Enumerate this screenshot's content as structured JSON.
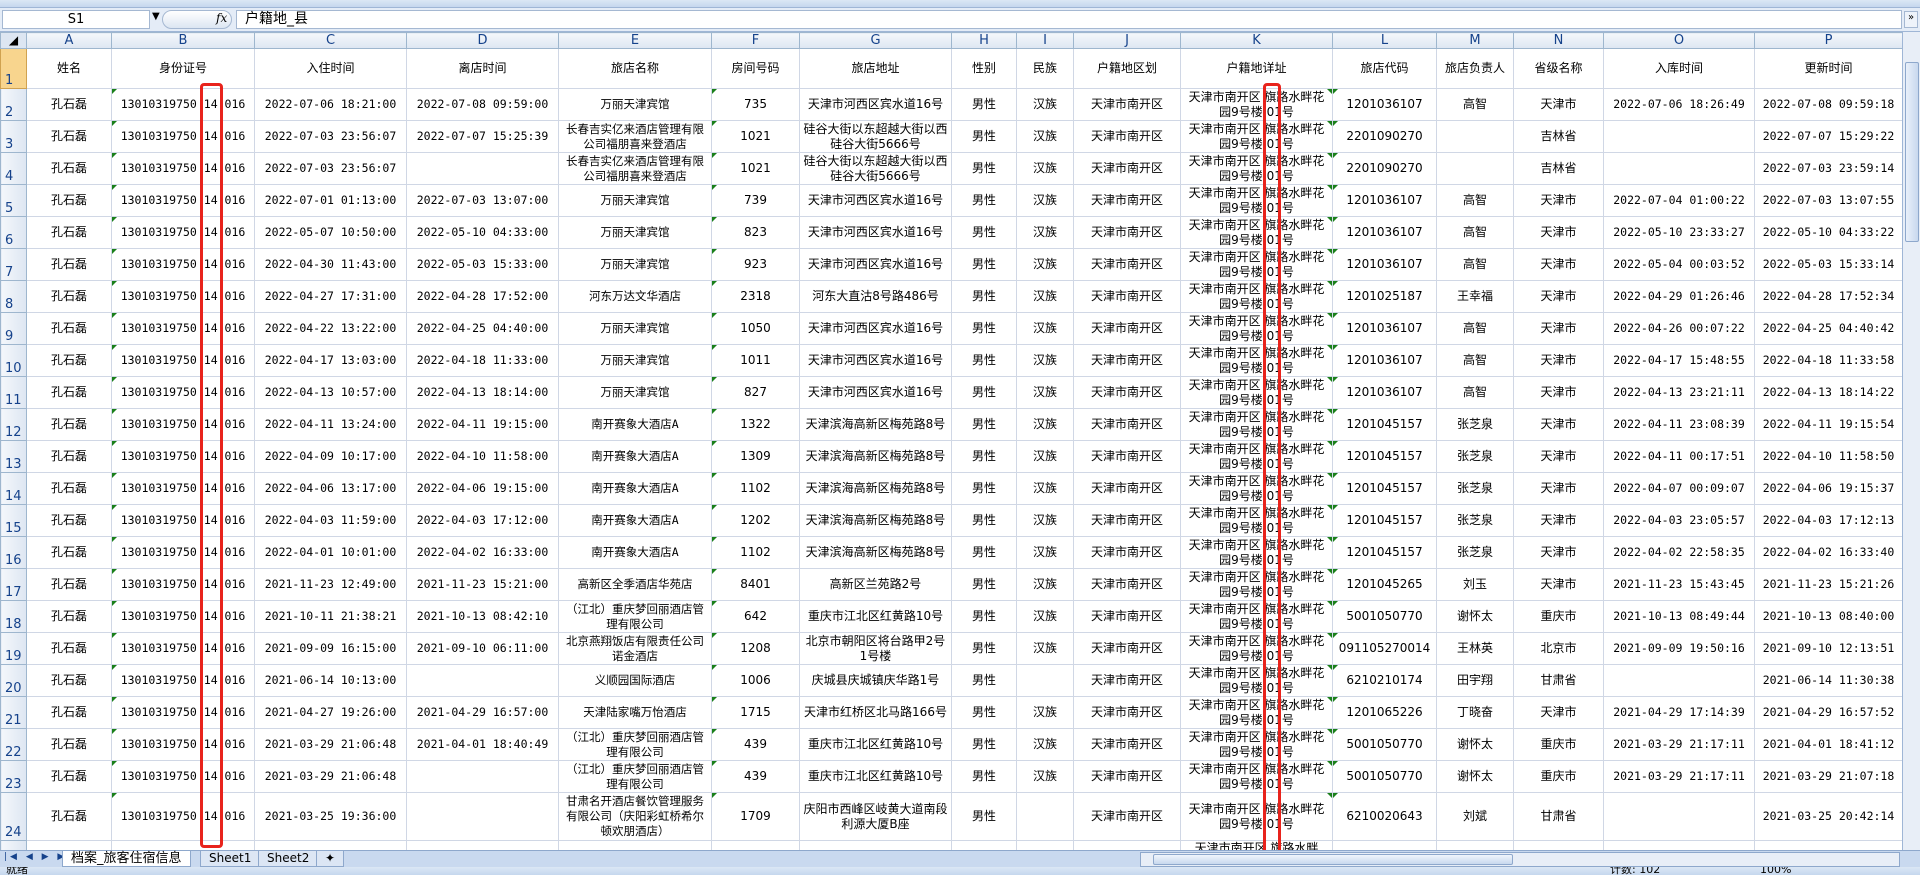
{
  "formula_bar": {
    "name_box": "S1",
    "fx": "fx",
    "content": "户籍地_县"
  },
  "columns": [
    "A",
    "B",
    "C",
    "D",
    "E",
    "F",
    "G",
    "H",
    "I",
    "J",
    "K",
    "L",
    "M",
    "N",
    "O",
    "P"
  ],
  "headers": [
    "姓名",
    "身份证号",
    "入住时间",
    "离店时间",
    "旅店名称",
    "房间号码",
    "旅店地址",
    "性别",
    "民族",
    "户籍地区划",
    "户籍地详址",
    "旅店代码",
    "旅店负责人",
    "省级名称",
    "入库时间",
    "更新时间"
  ],
  "rows": [
    [
      "孔石磊",
      "13010319750 14 016",
      "2022-07-06 18:21:00",
      "2022-07-08 09:59:00",
      "万丽天津宾馆",
      "735",
      "天津市河西区宾水道16号",
      "男性",
      "汉族",
      "天津市南开区",
      "天津市南开区 旗路水畔花园9号楼 01号",
      "1201036107",
      "高智",
      "天津市",
      "2022-07-06 18:26:49",
      "2022-07-08 09:59:18"
    ],
    [
      "孔石磊",
      "13010319750 14 016",
      "2022-07-03 23:56:07",
      "2022-07-07 15:25:39",
      "长春吉实亿来酒店管理有限公司福朋喜来登酒店",
      "1021",
      "硅谷大街以东超越大街以西硅谷大街5666号",
      "男性",
      "汉族",
      "天津市南开区",
      "天津市南开区 旗路水畔花园9号楼 01号",
      "2201090270",
      "",
      "吉林省",
      "",
      "2022-07-07 15:29:22"
    ],
    [
      "孔石磊",
      "13010319750 14 016",
      "2022-07-03 23:56:07",
      "",
      "长春吉实亿来酒店管理有限公司福朋喜来登酒店",
      "1021",
      "硅谷大街以东超越大街以西硅谷大街5666号",
      "男性",
      "汉族",
      "天津市南开区",
      "天津市南开区 旗路水畔花园9号楼 01号",
      "2201090270",
      "",
      "吉林省",
      "",
      "2022-07-03 23:59:14"
    ],
    [
      "孔石磊",
      "13010319750 14 016",
      "2022-07-01 01:13:00",
      "2022-07-03 13:07:00",
      "万丽天津宾馆",
      "739",
      "天津市河西区宾水道16号",
      "男性",
      "汉族",
      "天津市南开区",
      "天津市南开区 旗路水畔花园9号楼 01号",
      "1201036107",
      "高智",
      "天津市",
      "2022-07-04 01:00:22",
      "2022-07-03 13:07:55"
    ],
    [
      "孔石磊",
      "13010319750 14 016",
      "2022-05-07 10:50:00",
      "2022-05-10 04:33:00",
      "万丽天津宾馆",
      "823",
      "天津市河西区宾水道16号",
      "男性",
      "汉族",
      "天津市南开区",
      "天津市南开区 旗路水畔花园9号楼 01号",
      "1201036107",
      "高智",
      "天津市",
      "2022-05-10 23:33:27",
      "2022-05-10 04:33:22"
    ],
    [
      "孔石磊",
      "13010319750 14 016",
      "2022-04-30 11:43:00",
      "2022-05-03 15:33:00",
      "万丽天津宾馆",
      "923",
      "天津市河西区宾水道16号",
      "男性",
      "汉族",
      "天津市南开区",
      "天津市南开区 旗路水畔花园9号楼 01号",
      "1201036107",
      "高智",
      "天津市",
      "2022-05-04 00:03:52",
      "2022-05-03 15:33:14"
    ],
    [
      "孔石磊",
      "13010319750 14 016",
      "2022-04-27 17:31:00",
      "2022-04-28 17:52:00",
      "河东万达文华酒店",
      "2318",
      "河东大直沽8号路486号",
      "男性",
      "汉族",
      "天津市南开区",
      "天津市南开区 旗路水畔花园9号楼 01号",
      "1201025187",
      "王幸福",
      "天津市",
      "2022-04-29 01:26:46",
      "2022-04-28 17:52:34"
    ],
    [
      "孔石磊",
      "13010319750 14 016",
      "2022-04-22 13:22:00",
      "2022-04-25 04:40:00",
      "万丽天津宾馆",
      "1050",
      "天津市河西区宾水道16号",
      "男性",
      "汉族",
      "天津市南开区",
      "天津市南开区 旗路水畔花园9号楼 01号",
      "1201036107",
      "高智",
      "天津市",
      "2022-04-26 00:07:22",
      "2022-04-25 04:40:42"
    ],
    [
      "孔石磊",
      "13010319750 14 016",
      "2022-04-17 13:03:00",
      "2022-04-18 11:33:00",
      "万丽天津宾馆",
      "1011",
      "天津市河西区宾水道16号",
      "男性",
      "汉族",
      "天津市南开区",
      "天津市南开区 旗路水畔花园9号楼 01号",
      "1201036107",
      "高智",
      "天津市",
      "2022-04-17 15:48:55",
      "2022-04-18 11:33:58"
    ],
    [
      "孔石磊",
      "13010319750 14 016",
      "2022-04-13 10:57:00",
      "2022-04-13 18:14:00",
      "万丽天津宾馆",
      "827",
      "天津市河西区宾水道16号",
      "男性",
      "汉族",
      "天津市南开区",
      "天津市南开区 旗路水畔花园9号楼 01号",
      "1201036107",
      "高智",
      "天津市",
      "2022-04-13 23:21:11",
      "2022-04-13 18:14:22"
    ],
    [
      "孔石磊",
      "13010319750 14 016",
      "2022-04-11 13:24:00",
      "2022-04-11 19:15:00",
      "南开赛象大酒店A",
      "1322",
      "天津滨海高新区梅苑路8号",
      "男性",
      "汉族",
      "天津市南开区",
      "天津市南开区 旗路水畔花园9号楼 01号",
      "1201045157",
      "张芝泉",
      "天津市",
      "2022-04-11 23:08:39",
      "2022-04-11 19:15:54"
    ],
    [
      "孔石磊",
      "13010319750 14 016",
      "2022-04-09 10:17:00",
      "2022-04-10 11:58:00",
      "南开赛象大酒店A",
      "1309",
      "天津滨海高新区梅苑路8号",
      "男性",
      "汉族",
      "天津市南开区",
      "天津市南开区 旗路水畔花园9号楼 01号",
      "1201045157",
      "张芝泉",
      "天津市",
      "2022-04-11 00:17:51",
      "2022-04-10 11:58:50"
    ],
    [
      "孔石磊",
      "13010319750 14 016",
      "2022-04-06 13:17:00",
      "2022-04-06 19:15:00",
      "南开赛象大酒店A",
      "1102",
      "天津滨海高新区梅苑路8号",
      "男性",
      "汉族",
      "天津市南开区",
      "天津市南开区 旗路水畔花园9号楼 01号",
      "1201045157",
      "张芝泉",
      "天津市",
      "2022-04-07 00:09:07",
      "2022-04-06 19:15:37"
    ],
    [
      "孔石磊",
      "13010319750 14 016",
      "2022-04-03 11:59:00",
      "2022-04-03 17:12:00",
      "南开赛象大酒店A",
      "1202",
      "天津滨海高新区梅苑路8号",
      "男性",
      "汉族",
      "天津市南开区",
      "天津市南开区 旗路水畔花园9号楼 01号",
      "1201045157",
      "张芝泉",
      "天津市",
      "2022-04-03 23:05:57",
      "2022-04-03 17:12:13"
    ],
    [
      "孔石磊",
      "13010319750 14 016",
      "2022-04-01 10:01:00",
      "2022-04-02 16:33:00",
      "南开赛象大酒店A",
      "1102",
      "天津滨海高新区梅苑路8号",
      "男性",
      "汉族",
      "天津市南开区",
      "天津市南开区 旗路水畔花园9号楼 01号",
      "1201045157",
      "张芝泉",
      "天津市",
      "2022-04-02 22:58:35",
      "2022-04-02 16:33:40"
    ],
    [
      "孔石磊",
      "13010319750 14 016",
      "2021-11-23 12:49:00",
      "2021-11-23 15:21:00",
      "高新区全季酒店华苑店",
      "8401",
      "高新区兰苑路2号",
      "男性",
      "汉族",
      "天津市南开区",
      "天津市南开区 旗路水畔花园9号楼 01号",
      "1201045265",
      "刘玉",
      "天津市",
      "2021-11-23 15:43:45",
      "2021-11-23 15:21:26"
    ],
    [
      "孔石磊",
      "13010319750 14 016",
      "2021-10-11 21:38:21",
      "2021-10-13 08:42:10",
      "（江北）重庆梦回丽酒店管理有限公司",
      "642",
      "重庆市江北区红黄路10号",
      "男性",
      "汉族",
      "天津市南开区",
      "天津市南开区 旗路水畔花园9号楼 01号",
      "5001050770",
      "谢怀太",
      "重庆市",
      "2021-10-13 08:49:44",
      "2021-10-13 08:40:00"
    ],
    [
      "孔石磊",
      "13010319750 14 016",
      "2021-09-09 16:15:00",
      "2021-09-10 06:11:00",
      "北京燕翔饭店有限责任公司诺金酒店",
      "1208",
      "北京市朝阳区将台路甲2号1号楼",
      "男性",
      "汉族",
      "天津市南开区",
      "天津市南开区 旗路水畔花园9号楼 01号",
      "091105270014",
      "王林英",
      "北京市",
      "2021-09-09 19:50:16",
      "2021-09-10 12:13:51"
    ],
    [
      "孔石磊",
      "13010319750 14 016",
      "2021-06-14 10:13:00",
      "",
      "义顺园国际酒店",
      "1006",
      "庆城县庆城镇庆华路1号",
      "男性",
      "",
      "天津市南开区",
      "天津市南开区 旗路水畔花园9号楼 01号",
      "6210210174",
      "田宇翔",
      "甘肃省",
      "",
      "2021-06-14 11:30:38"
    ],
    [
      "孔石磊",
      "13010319750 14 016",
      "2021-04-27 19:26:00",
      "2021-04-29 16:57:00",
      "天津陆家嘴万怡酒店",
      "1715",
      "天津市红桥区北马路166号",
      "男性",
      "汉族",
      "天津市南开区",
      "天津市南开区 旗路水畔花园9号楼 01号",
      "1201065226",
      "丁晓奋",
      "天津市",
      "2021-04-29 17:14:39",
      "2021-04-29 16:57:52"
    ],
    [
      "孔石磊",
      "13010319750 14 016",
      "2021-03-29 21:06:48",
      "2021-04-01 18:40:49",
      "（江北）重庆梦回丽酒店管理有限公司",
      "439",
      "重庆市江北区红黄路10号",
      "男性",
      "汉族",
      "天津市南开区",
      "天津市南开区 旗路水畔花园9号楼 01号",
      "5001050770",
      "谢怀太",
      "重庆市",
      "2021-03-29 21:17:11",
      "2021-04-01 18:41:12"
    ],
    [
      "孔石磊",
      "13010319750 14 016",
      "2021-03-29 21:06:48",
      "",
      "（江北）重庆梦回丽酒店管理有限公司",
      "439",
      "重庆市江北区红黄路10号",
      "男性",
      "汉族",
      "天津市南开区",
      "天津市南开区 旗路水畔花园9号楼 01号",
      "5001050770",
      "谢怀太",
      "重庆市",
      "2021-03-29 21:17:11",
      "2021-03-29 21:07:18"
    ],
    [
      "孔石磊",
      "13010319750 14 016",
      "2021-03-25 19:36:00",
      "",
      "甘肃名开酒店餐饮管理服务有限公司（庆阳彩虹桥希尔顿欢朋酒店）",
      "1709",
      "庆阳市西峰区岐黄大道南段利源大厦B座",
      "男性",
      "",
      "天津市南开区",
      "天津市南开区 旗路水畔花园9号楼 01号",
      "6210020643",
      "刘斌",
      "甘肃省",
      "",
      "2021-03-25 20:42:14"
    ]
  ],
  "partial_row": {
    "K": "天津市南开区 旗路水畔"
  },
  "sheet_tabs": [
    "档案_旅客住宿信息",
    "Sheet1",
    "Sheet2"
  ],
  "active_tab": "档案_旅客住宿信息",
  "status": {
    "ready": "就绪",
    "count": "计数: 102",
    "zoom": "100%"
  },
  "colors": {
    "highlight_box": "#e8231c",
    "selected_row_header": "#f8d58e",
    "error_indicator": "#1a7f1a"
  }
}
